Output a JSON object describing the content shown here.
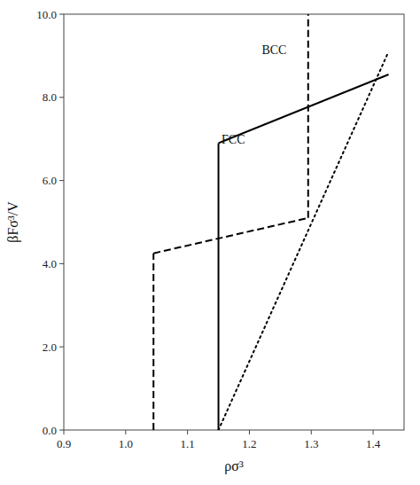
{
  "chart_data": {
    "type": "line",
    "xlabel": "ρσ³",
    "ylabel": "βFσ³/V",
    "xlim": [
      0.9,
      1.45
    ],
    "ylim": [
      0.0,
      10.0
    ],
    "xticks": [
      0.9,
      {
        "value": 1.0,
        "label": "1.0"
      },
      1.1,
      1.2,
      1.3,
      1.4
    ],
    "yticks": [
      {
        "value": 0.0,
        "label": "0.0"
      },
      {
        "value": 2.0,
        "label": "2.0"
      },
      {
        "value": 4.0,
        "label": "4.0"
      },
      {
        "value": 6.0,
        "label": "6.0"
      },
      {
        "value": 8.0,
        "label": "8.0"
      },
      {
        "value": 10.0,
        "label": "10.0"
      }
    ],
    "grid": false,
    "series": [
      {
        "line_style": "dashed",
        "color": "#000000",
        "x": [
          1.045,
          1.045
        ],
        "values": [
          0.0,
          4.25
        ]
      },
      {
        "line_style": "dashed",
        "color": "#000000",
        "x": [
          1.045,
          1.295
        ],
        "values": [
          4.25,
          5.1
        ]
      },
      {
        "line_style": "dashed",
        "color": "#000000",
        "x": [
          1.295,
          1.295
        ],
        "values": [
          5.1,
          10.0
        ]
      },
      {
        "line_style": "solid",
        "color": "#000000",
        "x": [
          1.15,
          1.15
        ],
        "values": [
          0.0,
          6.9
        ]
      },
      {
        "line_style": "solid",
        "color": "#000000",
        "x": [
          1.15,
          1.425
        ],
        "values": [
          6.9,
          8.55
        ]
      },
      {
        "line_style": "dotted",
        "color": "#000000",
        "x": [
          1.15,
          1.425
        ],
        "values": [
          0.0,
          9.1
        ]
      }
    ],
    "annotations": [
      {
        "text": "FCC",
        "x": 1.155,
        "y": 6.95
      },
      {
        "text": "BCC",
        "x": 1.22,
        "y": 9.1
      }
    ]
  }
}
